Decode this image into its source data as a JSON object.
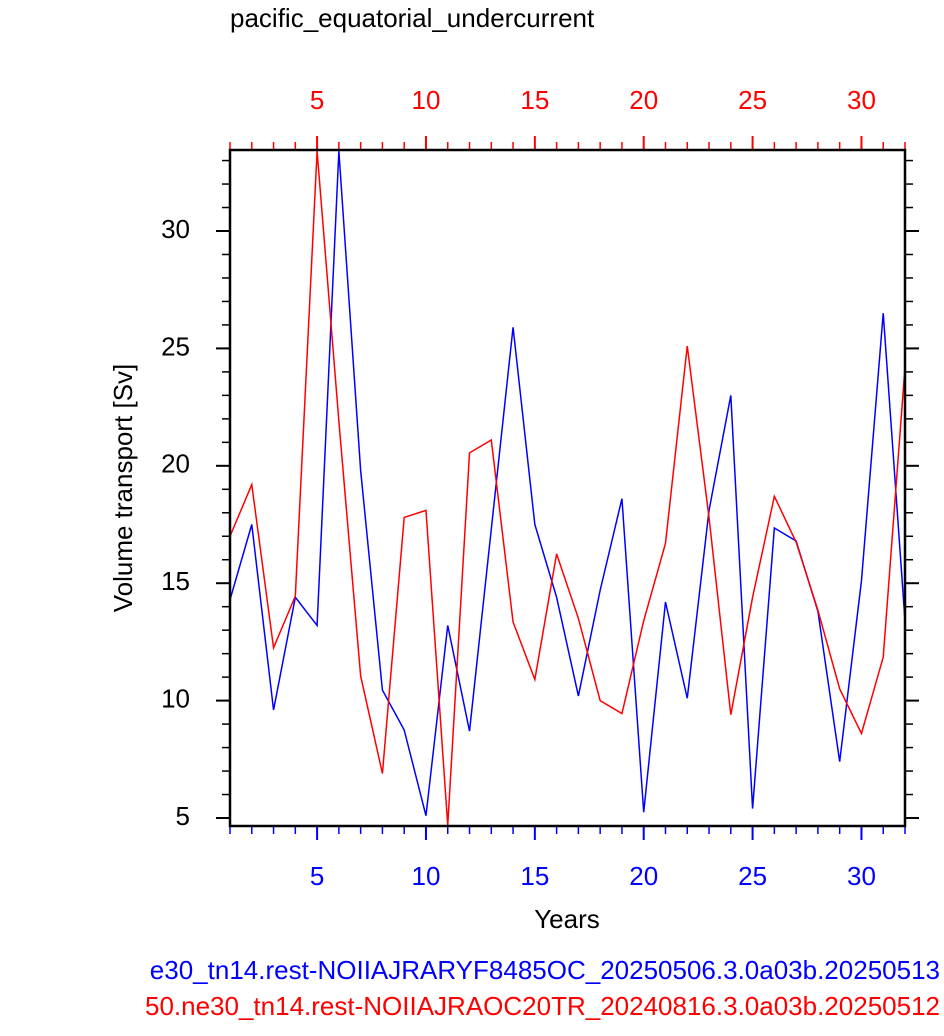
{
  "chart_data": {
    "type": "line",
    "title": "pacific_equatorial_undercurrent",
    "xlabel": "Years",
    "ylabel": "Volume transport [Sv]",
    "x": [
      1,
      2,
      3,
      4,
      5,
      6,
      7,
      8,
      9,
      10,
      11,
      12,
      13,
      14,
      15,
      16,
      17,
      18,
      19,
      20,
      21,
      22,
      23,
      24,
      25,
      26,
      27,
      28,
      29,
      30,
      31,
      32
    ],
    "xlim": [
      1,
      32
    ],
    "xticks": [
      5,
      10,
      15,
      20,
      25,
      30
    ],
    "xminorticks": [
      1,
      2,
      3,
      4,
      5,
      6,
      7,
      8,
      9,
      10,
      11,
      12,
      13,
      14,
      15,
      16,
      17,
      18,
      19,
      20,
      21,
      22,
      23,
      24,
      25,
      26,
      27,
      28,
      29,
      30,
      31,
      32
    ],
    "x2ticks": [
      5,
      10,
      15,
      20,
      25,
      30
    ],
    "xcolor": "#0000ff",
    "x2color": "#ff0000",
    "ylim": [
      4.66,
      33.45
    ],
    "yticks": [
      5,
      10,
      15,
      20,
      25,
      30
    ],
    "yminorticks": [
      5,
      6,
      7,
      8,
      9,
      10,
      11,
      12,
      13,
      14,
      15,
      16,
      17,
      18,
      19,
      20,
      21,
      22,
      23,
      24,
      25,
      26,
      27,
      28,
      29,
      30,
      31,
      32,
      33
    ],
    "series": [
      {
        "name": "e30_tn14.rest-NOIIAJRARYF8485OC_20250506.3.0a03b.20250513",
        "color": "#0000ff",
        "values": [
          14.3,
          17.5,
          9.6,
          14.4,
          13.2,
          33.4,
          19.8,
          10.45,
          8.75,
          5.1,
          13.2,
          8.7,
          17.3,
          25.9,
          17.5,
          14.4,
          10.2,
          14.7,
          18.6,
          5.25,
          14.2,
          10.1,
          18.1,
          23.0,
          5.4,
          17.35,
          16.8,
          13.8,
          7.4,
          15.1,
          26.5,
          13.4
        ]
      },
      {
        "name": "50.ne30_tn14.rest-NOIIAJRAOC20TR_20240816.3.0a03b.20250512",
        "color": "#ff0000",
        "values": [
          17.0,
          19.2,
          12.25,
          14.45,
          33.4,
          21.9,
          11.05,
          6.9,
          17.8,
          18.1,
          4.7,
          20.55,
          21.1,
          13.35,
          10.9,
          16.25,
          13.5,
          10.0,
          9.45,
          13.4,
          16.7,
          25.1,
          17.8,
          9.4,
          14.4,
          18.7,
          16.75,
          13.85,
          10.5,
          8.6,
          11.85,
          24.2
        ]
      }
    ]
  }
}
